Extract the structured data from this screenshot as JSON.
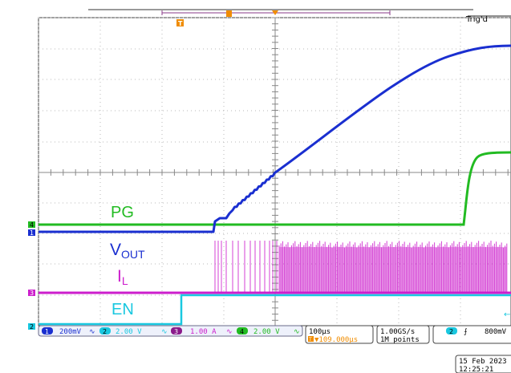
{
  "header": {
    "trigger_status": "Trig'd"
  },
  "markers": {
    "trigger_pos": "T",
    "center": "↓"
  },
  "channel_markers": {
    "ch1": "1",
    "ch2": "2",
    "ch3": "3",
    "ch4": "4"
  },
  "waveform_labels": {
    "pg": "PG",
    "vout_main": "V",
    "vout_sub": "OUT",
    "il_main": "I",
    "il_sub": "L",
    "en": "EN"
  },
  "channels": [
    {
      "num": "1",
      "scale": "200mV",
      "coupling": "∿",
      "color": "#1a2fd0"
    },
    {
      "num": "2",
      "scale": "2.00 V",
      "coupling": "∿",
      "color": "#19c8e0"
    },
    {
      "num": "3",
      "scale": "1.00 A",
      "coupling": "∿",
      "color": "#cc1ecc"
    },
    {
      "num": "4",
      "scale": "2.00 V",
      "coupling": "∿",
      "color": "#22bb22"
    }
  ],
  "timebase": {
    "scale": "100µs",
    "position": "▼109.000µs",
    "position_icon": "T"
  },
  "acquisition": {
    "sample_rate": "1.00GS/s",
    "record_length": "1M points"
  },
  "trigger": {
    "source": "2",
    "slope": "⨍",
    "level": "800mV"
  },
  "datetime": {
    "date": "15 Feb  2023",
    "time": "12:25:21"
  },
  "colors": {
    "ch1": "#1a2fd0",
    "ch2": "#19c8e0",
    "ch3": "#cc1ecc",
    "ch4": "#22bb22",
    "grid": "#b8b8b8",
    "trigger_marker": "#f08c00"
  }
}
